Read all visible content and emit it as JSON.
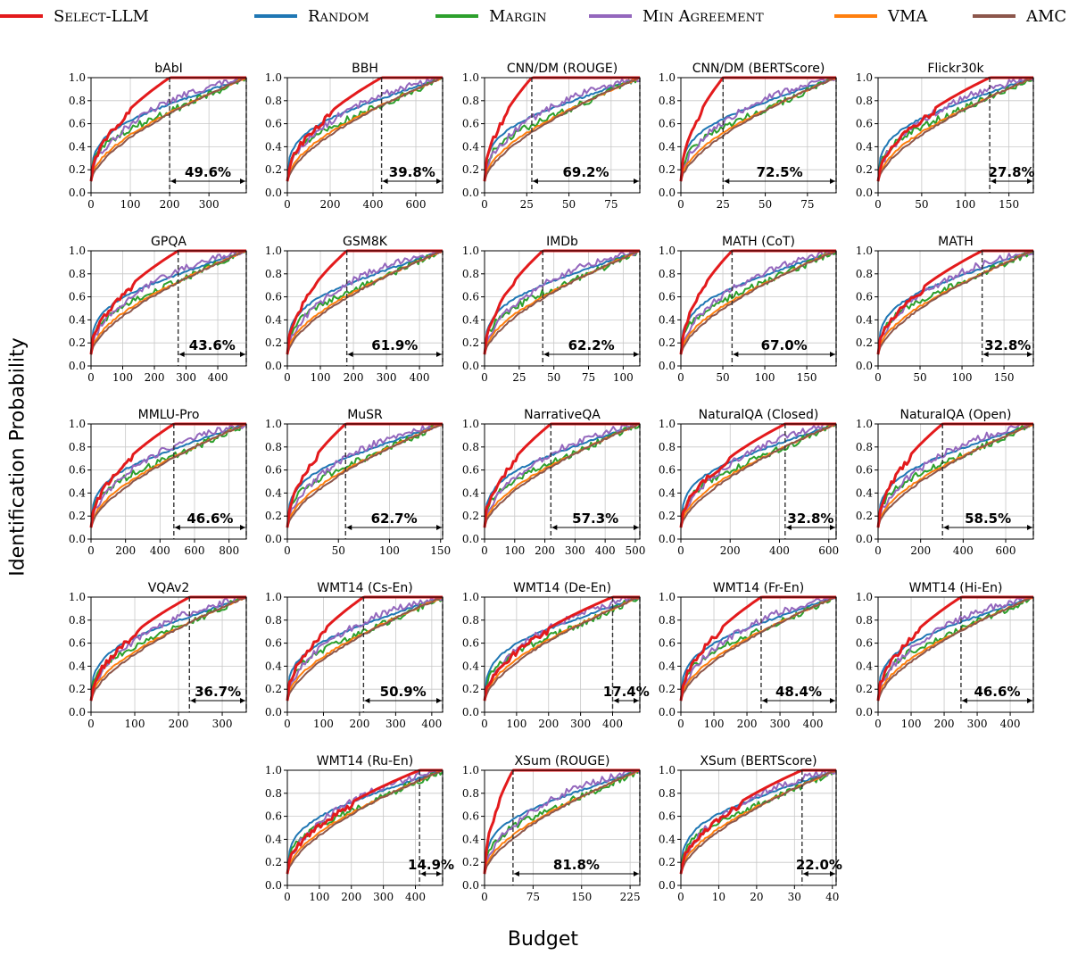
{
  "legend": [
    {
      "name": "Select-LLM",
      "color": "#e31a1c"
    },
    {
      "name": "Random",
      "color": "#1f77b4"
    },
    {
      "name": "Margin",
      "color": "#2ca02c"
    },
    {
      "name": "Min Agreement",
      "color": "#9467bd"
    },
    {
      "name": "VMA",
      "color": "#ff7f0e"
    },
    {
      "name": "AMC",
      "color": "#8c564b"
    }
  ],
  "ylabel": "Identification Probability",
  "xlabel": "Budget",
  "chart_data": [
    {
      "type": "line",
      "title": "bAbI",
      "xlim": [
        0,
        395
      ],
      "xticks": [
        0,
        100,
        200,
        300
      ],
      "ylim": [
        0,
        1
      ],
      "yticks": [
        0,
        0.2,
        0.4,
        0.6,
        0.8,
        1.0
      ],
      "reach": {
        "Select-LLM": 200,
        "best_baseline": 395
      },
      "annotation": "49.6%",
      "grid": true
    },
    {
      "type": "line",
      "title": "BBH",
      "xlim": [
        0,
        725
      ],
      "xticks": [
        0,
        200,
        400,
        600
      ],
      "ylim": [
        0,
        1
      ],
      "yticks": [
        0,
        0.2,
        0.4,
        0.6,
        0.8,
        1.0
      ],
      "reach": {
        "Select-LLM": 440,
        "best_baseline": 725
      },
      "annotation": "39.8%",
      "grid": true
    },
    {
      "type": "line",
      "title": "CNN/DM (ROUGE)",
      "xlim": [
        0,
        92
      ],
      "xticks": [
        0,
        25,
        50,
        75
      ],
      "ylim": [
        0,
        1
      ],
      "yticks": [
        0,
        0.2,
        0.4,
        0.6,
        0.8,
        1.0
      ],
      "reach": {
        "Select-LLM": 28,
        "best_baseline": 92
      },
      "annotation": "69.2%",
      "grid": true
    },
    {
      "type": "line",
      "title": "CNN/DM (BERTScore)",
      "xlim": [
        0,
        92
      ],
      "xticks": [
        0,
        25,
        50,
        75
      ],
      "ylim": [
        0,
        1
      ],
      "yticks": [
        0,
        0.2,
        0.4,
        0.6,
        0.8,
        1.0
      ],
      "reach": {
        "Select-LLM": 25,
        "best_baseline": 92
      },
      "annotation": "72.5%",
      "grid": true
    },
    {
      "type": "line",
      "title": "Flickr30k",
      "xlim": [
        0,
        178
      ],
      "xticks": [
        0,
        50,
        100,
        150
      ],
      "ylim": [
        0,
        1
      ],
      "yticks": [
        0,
        0.2,
        0.4,
        0.6,
        0.8,
        1.0
      ],
      "reach": {
        "Select-LLM": 128,
        "best_baseline": 178
      },
      "annotation": "27.8%",
      "grid": true
    },
    {
      "type": "line",
      "title": "GPQA",
      "xlim": [
        0,
        490
      ],
      "xticks": [
        0,
        100,
        200,
        300,
        400
      ],
      "ylim": [
        0,
        1
      ],
      "yticks": [
        0,
        0.2,
        0.4,
        0.6,
        0.8,
        1.0
      ],
      "reach": {
        "Select-LLM": 275,
        "best_baseline": 490
      },
      "annotation": "43.6%",
      "grid": true
    },
    {
      "type": "line",
      "title": "GSM8K",
      "xlim": [
        0,
        470
      ],
      "xticks": [
        0,
        100,
        200,
        300,
        400
      ],
      "ylim": [
        0,
        1
      ],
      "yticks": [
        0,
        0.2,
        0.4,
        0.6,
        0.8,
        1.0
      ],
      "reach": {
        "Select-LLM": 180,
        "best_baseline": 470
      },
      "annotation": "61.9%",
      "grid": true
    },
    {
      "type": "line",
      "title": "IMDb",
      "xlim": [
        0,
        112
      ],
      "xticks": [
        0,
        25,
        50,
        75,
        100
      ],
      "ylim": [
        0,
        1
      ],
      "yticks": [
        0,
        0.2,
        0.4,
        0.6,
        0.8,
        1.0
      ],
      "reach": {
        "Select-LLM": 42,
        "best_baseline": 112
      },
      "annotation": "62.2%",
      "grid": true
    },
    {
      "type": "line",
      "title": "MATH (CoT)",
      "xlim": [
        0,
        185
      ],
      "xticks": [
        0,
        50,
        100,
        150
      ],
      "ylim": [
        0,
        1
      ],
      "yticks": [
        0,
        0.2,
        0.4,
        0.6,
        0.8,
        1.0
      ],
      "reach": {
        "Select-LLM": 61,
        "best_baseline": 185
      },
      "annotation": "67.0%",
      "grid": true
    },
    {
      "type": "line",
      "title": "MATH",
      "xlim": [
        0,
        185
      ],
      "xticks": [
        0,
        50,
        100,
        150
      ],
      "ylim": [
        0,
        1
      ],
      "yticks": [
        0,
        0.2,
        0.4,
        0.6,
        0.8,
        1.0
      ],
      "reach": {
        "Select-LLM": 124,
        "best_baseline": 185
      },
      "annotation": "32.8%",
      "grid": true
    },
    {
      "type": "line",
      "title": "MMLU-Pro",
      "xlim": [
        0,
        900
      ],
      "xticks": [
        0,
        200,
        400,
        600,
        800
      ],
      "ylim": [
        0,
        1
      ],
      "yticks": [
        0,
        0.2,
        0.4,
        0.6,
        0.8,
        1.0
      ],
      "reach": {
        "Select-LLM": 480,
        "best_baseline": 900
      },
      "annotation": "46.6%",
      "grid": true
    },
    {
      "type": "line",
      "title": "MuSR",
      "xlim": [
        0,
        152
      ],
      "xticks": [
        0,
        50,
        100,
        150
      ],
      "ylim": [
        0,
        1
      ],
      "yticks": [
        0,
        0.2,
        0.4,
        0.6,
        0.8,
        1.0
      ],
      "reach": {
        "Select-LLM": 57,
        "best_baseline": 152
      },
      "annotation": "62.7%",
      "grid": true
    },
    {
      "type": "line",
      "title": "NarrativeQA",
      "xlim": [
        0,
        515
      ],
      "xticks": [
        0,
        100,
        200,
        300,
        400,
        500
      ],
      "ylim": [
        0,
        1
      ],
      "yticks": [
        0,
        0.2,
        0.4,
        0.6,
        0.8,
        1.0
      ],
      "reach": {
        "Select-LLM": 220,
        "best_baseline": 515
      },
      "annotation": "57.3%",
      "grid": true
    },
    {
      "type": "line",
      "title": "NaturalQA (Closed)",
      "xlim": [
        0,
        630
      ],
      "xticks": [
        0,
        200,
        400,
        600
      ],
      "ylim": [
        0,
        1
      ],
      "yticks": [
        0,
        0.2,
        0.4,
        0.6,
        0.8,
        1.0
      ],
      "reach": {
        "Select-LLM": 423,
        "best_baseline": 630
      },
      "annotation": "32.8%",
      "grid": true
    },
    {
      "type": "line",
      "title": "NaturalQA (Open)",
      "xlim": [
        0,
        730
      ],
      "xticks": [
        0,
        200,
        400,
        600
      ],
      "ylim": [
        0,
        1
      ],
      "yticks": [
        0,
        0.2,
        0.4,
        0.6,
        0.8,
        1.0
      ],
      "reach": {
        "Select-LLM": 303,
        "best_baseline": 730
      },
      "annotation": "58.5%",
      "grid": true
    },
    {
      "type": "line",
      "title": "VQAv2",
      "xlim": [
        0,
        355
      ],
      "xticks": [
        0,
        100,
        200,
        300
      ],
      "ylim": [
        0,
        1
      ],
      "yticks": [
        0,
        0.2,
        0.4,
        0.6,
        0.8,
        1.0
      ],
      "reach": {
        "Select-LLM": 225,
        "best_baseline": 355
      },
      "annotation": "36.7%",
      "grid": true
    },
    {
      "type": "line",
      "title": "WMT14 (Cs-En)",
      "xlim": [
        0,
        430
      ],
      "xticks": [
        0,
        100,
        200,
        300,
        400
      ],
      "ylim": [
        0,
        1
      ],
      "yticks": [
        0,
        0.2,
        0.4,
        0.6,
        0.8,
        1.0
      ],
      "reach": {
        "Select-LLM": 211,
        "best_baseline": 430
      },
      "annotation": "50.9%",
      "grid": true
    },
    {
      "type": "line",
      "title": "WMT14 (De-En)",
      "xlim": [
        0,
        485
      ],
      "xticks": [
        0,
        100,
        200,
        300,
        400
      ],
      "ylim": [
        0,
        1
      ],
      "yticks": [
        0,
        0.2,
        0.4,
        0.6,
        0.8,
        1.0
      ],
      "reach": {
        "Select-LLM": 400,
        "best_baseline": 485
      },
      "annotation": "17.4%",
      "grid": true
    },
    {
      "type": "line",
      "title": "WMT14 (Fr-En)",
      "xlim": [
        0,
        470
      ],
      "xticks": [
        0,
        100,
        200,
        300,
        400
      ],
      "ylim": [
        0,
        1
      ],
      "yticks": [
        0,
        0.2,
        0.4,
        0.6,
        0.8,
        1.0
      ],
      "reach": {
        "Select-LLM": 243,
        "best_baseline": 470
      },
      "annotation": "48.4%",
      "grid": true
    },
    {
      "type": "line",
      "title": "WMT14 (Hi-En)",
      "xlim": [
        0,
        470
      ],
      "xticks": [
        0,
        100,
        200,
        300,
        400
      ],
      "ylim": [
        0,
        1
      ],
      "yticks": [
        0,
        0.2,
        0.4,
        0.6,
        0.8,
        1.0
      ],
      "reach": {
        "Select-LLM": 251,
        "best_baseline": 470
      },
      "annotation": "46.6%",
      "grid": true
    },
    {
      "type": "line",
      "title": "WMT14 (Ru-En)",
      "xlim": [
        0,
        485
      ],
      "xticks": [
        0,
        100,
        200,
        300,
        400
      ],
      "ylim": [
        0,
        1
      ],
      "yticks": [
        0,
        0.2,
        0.4,
        0.6,
        0.8,
        1.0
      ],
      "reach": {
        "Select-LLM": 413,
        "best_baseline": 485
      },
      "annotation": "14.9%",
      "grid": true
    },
    {
      "type": "line",
      "title": "XSum (ROUGE)",
      "xlim": [
        0,
        240
      ],
      "xticks": [
        0,
        75,
        150,
        225
      ],
      "ylim": [
        0,
        1
      ],
      "yticks": [
        0,
        0.2,
        0.4,
        0.6,
        0.8,
        1.0
      ],
      "reach": {
        "Select-LLM": 44,
        "best_baseline": 240
      },
      "annotation": "81.8%",
      "grid": true
    },
    {
      "type": "line",
      "title": "XSum (BERTScore)",
      "xlim": [
        0,
        41
      ],
      "xticks": [
        0,
        10,
        20,
        30,
        40
      ],
      "ylim": [
        0,
        1
      ],
      "yticks": [
        0,
        0.2,
        0.4,
        0.6,
        0.8,
        1.0
      ],
      "reach": {
        "Select-LLM": 32,
        "best_baseline": 41
      },
      "annotation": "22.0%",
      "grid": true
    }
  ]
}
